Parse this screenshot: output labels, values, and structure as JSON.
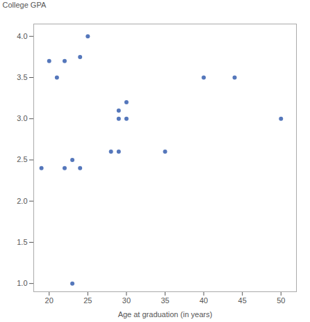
{
  "chart_data": {
    "type": "scatter",
    "x": [
      19,
      20,
      21,
      22,
      23,
      23,
      24,
      25,
      28,
      29,
      30,
      30,
      35,
      40,
      44,
      50,
      22,
      24,
      29,
      29
    ],
    "y": [
      2.4,
      3.7,
      3.5,
      3.7,
      2.5,
      1.0,
      3.75,
      4.0,
      2.6,
      3.1,
      3.2,
      3.0,
      2.6,
      3.5,
      3.5,
      3.0,
      2.4,
      2.4,
      2.6,
      3.0
    ],
    "color": "#5577BB",
    "xlabel": "Age at graduation (in years)",
    "ylabel": "College GPA",
    "xlim": [
      18,
      52
    ],
    "ylim": [
      0.9,
      4.15
    ],
    "xticks": [
      20,
      25,
      30,
      35,
      40,
      45,
      50
    ],
    "yticks": [
      {
        "value": 1.0,
        "label": "1.0"
      },
      1.5,
      {
        "value": 2.0,
        "label": "2.0"
      },
      2.5,
      {
        "value": 3.0,
        "label": "3.0"
      },
      3.5,
      {
        "value": 4.0,
        "label": "4.0"
      }
    ],
    "grid": false
  }
}
